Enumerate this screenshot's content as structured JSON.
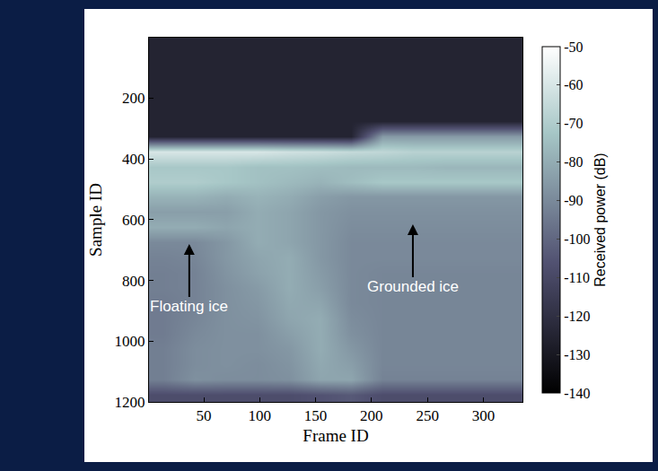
{
  "chart_data": {
    "type": "heatmap",
    "x_label": "Frame ID",
    "y_label": "Sample ID",
    "xlim": [
      1,
      335
    ],
    "ylim": [
      1200,
      1
    ],
    "xticks": [
      50,
      100,
      150,
      200,
      250,
      300
    ],
    "yticks": [
      200,
      400,
      600,
      800,
      1000,
      1200
    ],
    "x": [
      14,
      42,
      70,
      98,
      126,
      154,
      182,
      210,
      238,
      266,
      294,
      322
    ],
    "y": [
      25,
      75,
      125,
      175,
      225,
      275,
      325,
      375,
      425,
      475,
      525,
      575,
      625,
      675,
      725,
      775,
      825,
      875,
      925,
      975,
      1025,
      1075,
      1125,
      1175
    ],
    "cells": [
      [
        -125,
        -125,
        -125,
        -125,
        -125,
        -125,
        -125,
        -125,
        -125,
        -125,
        -125,
        -125
      ],
      [
        -125,
        -125,
        -125,
        -125,
        -125,
        -125,
        -125,
        -125,
        -125,
        -125,
        -125,
        -125
      ],
      [
        -125,
        -125,
        -125,
        -125,
        -125,
        -125,
        -125,
        -125,
        -125,
        -125,
        -125,
        -125
      ],
      [
        -125,
        -125,
        -125,
        -125,
        -125,
        -125,
        -125,
        -125,
        -125,
        -125,
        -125,
        -125
      ],
      [
        -125,
        -125,
        -125,
        -125,
        -125,
        -125,
        -125,
        -125,
        -125,
        -125,
        -125,
        -125
      ],
      [
        -125,
        -125,
        -125,
        -125,
        -125,
        -125,
        -125,
        -125,
        -125,
        -125,
        -125,
        -125
      ],
      [
        -125,
        -125,
        -125,
        -125,
        -125,
        -125,
        -125,
        -85,
        -85,
        -85,
        -85,
        -85
      ],
      [
        -60,
        -60,
        -60,
        -60,
        -62,
        -63,
        -65,
        -66,
        -68,
        -68,
        -68,
        -68
      ],
      [
        -72,
        -72,
        -72,
        -74,
        -74,
        -75,
        -76,
        -76,
        -76,
        -77,
        -77,
        -77
      ],
      [
        -70,
        -70,
        -72,
        -74,
        -76,
        -78,
        -75,
        -72,
        -72,
        -72,
        -72,
        -72
      ],
      [
        -78,
        -78,
        -80,
        -78,
        -80,
        -84,
        -86,
        -86,
        -86,
        -86,
        -86,
        -86
      ],
      [
        -84,
        -84,
        -84,
        -80,
        -82,
        -86,
        -88,
        -88,
        -88,
        -88,
        -88,
        -88
      ],
      [
        -80,
        -80,
        -82,
        -80,
        -82,
        -86,
        -89,
        -89,
        -89,
        -89,
        -89,
        -89
      ],
      [
        -90,
        -90,
        -86,
        -80,
        -82,
        -86,
        -90,
        -90,
        -90,
        -90,
        -90,
        -90
      ],
      [
        -92,
        -91,
        -86,
        -82,
        -80,
        -86,
        -90,
        -90,
        -90,
        -90,
        -90,
        -90
      ],
      [
        -93,
        -92,
        -87,
        -83,
        -80,
        -85,
        -90,
        -91,
        -91,
        -91,
        -91,
        -91
      ],
      [
        -93,
        -92,
        -88,
        -85,
        -80,
        -84,
        -90,
        -91,
        -91,
        -91,
        -91,
        -91
      ],
      [
        -94,
        -92,
        -88,
        -86,
        -81,
        -82,
        -90,
        -91,
        -91,
        -91,
        -91,
        -91
      ],
      [
        -94,
        -91,
        -88,
        -87,
        -82,
        -80,
        -89,
        -91,
        -91,
        -91,
        -91,
        -91
      ],
      [
        -94,
        -90,
        -88,
        -88,
        -84,
        -80,
        -88,
        -91,
        -91,
        -91,
        -91,
        -91
      ],
      [
        -93,
        -89,
        -88,
        -88,
        -86,
        -80,
        -86,
        -91,
        -91,
        -91,
        -91,
        -91
      ],
      [
        -93,
        -89,
        -88,
        -89,
        -87,
        -81,
        -84,
        -91,
        -91,
        -91,
        -91,
        -91
      ],
      [
        -93,
        -88,
        -89,
        -89,
        -88,
        -82,
        -82,
        -92,
        -92,
        -92,
        -92,
        -92
      ],
      [
        -108,
        -108,
        -108,
        -108,
        -108,
        -106,
        -104,
        -108,
        -108,
        -108,
        -108,
        -108
      ]
    ],
    "colorbar": {
      "title": "Received power (dB)",
      "range": [
        -140,
        -50
      ],
      "ticks": [
        -50,
        -60,
        -70,
        -80,
        -90,
        -100,
        -110,
        -120,
        -130,
        -140
      ]
    },
    "annotations": [
      {
        "text": "Floating ice",
        "x": 37,
        "y": 680
      },
      {
        "text": "Grounded ice",
        "x": 237,
        "y": 615
      }
    ]
  }
}
